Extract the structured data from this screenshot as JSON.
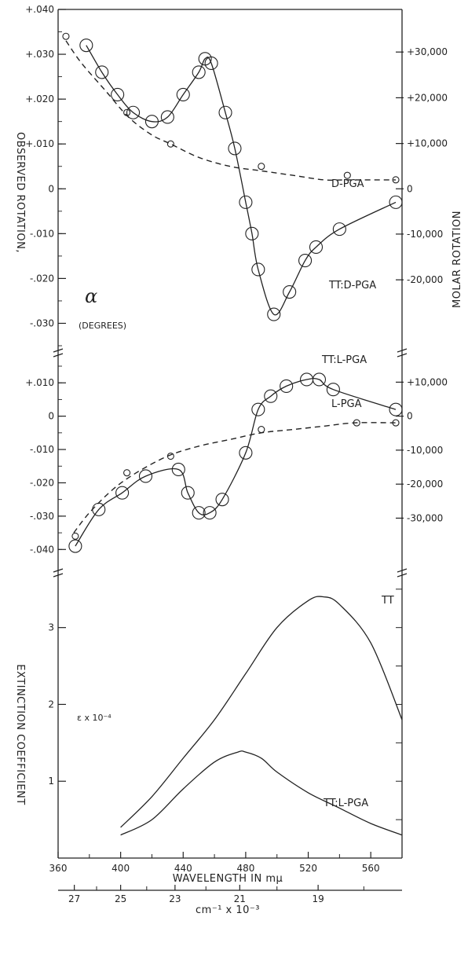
{
  "left_axis_label": "OBSERVED ROTATION,",
  "right_axis_label": "MOLAR ROTATION",
  "alpha_symbol": "α",
  "alpha_unit": "(DEGREES)",
  "ext_label": "EXTINCTION COEFFICIENT",
  "eps_label": "ε x 10⁻⁴",
  "xlabel": "WAVELENGTH IN mμ",
  "x2label": "cm⁻¹ x 10⁻³",
  "chart_data": [
    {
      "type": "line",
      "panel": "upper-rotation",
      "xlim": [
        360,
        580
      ],
      "ylim": [
        -0.035,
        0.04
      ],
      "left_ticks": [
        "+.040",
        "+.030",
        "+.020",
        "+.010",
        "0",
        "-.010",
        "-.020",
        "-.030"
      ],
      "right_ticks": [
        "+30,000",
        "+20,000",
        "+10,000",
        "0",
        "-10,000",
        "-20,000"
      ],
      "series": [
        {
          "name": "D-PGA",
          "style": "dashed",
          "x": [
            365,
            375,
            390,
            405,
            420,
            432,
            450,
            470,
            490,
            510,
            530,
            545,
            560,
            576
          ],
          "y": [
            0.033,
            0.028,
            0.022,
            0.016,
            0.012,
            0.01,
            0.007,
            0.005,
            0.004,
            0.003,
            0.002,
            0.002,
            0.002,
            0.002
          ]
        },
        {
          "name": "D-PGA points",
          "style": "small-circles",
          "x": [
            365,
            404,
            432,
            490,
            545,
            576
          ],
          "y": [
            0.034,
            0.017,
            0.01,
            0.005,
            0.003,
            0.002
          ]
        },
        {
          "name": "TT:D-PGA",
          "style": "solid-circles",
          "x": [
            378,
            388,
            398,
            408,
            420,
            430,
            440,
            450,
            454,
            458,
            467,
            473,
            480,
            484,
            488,
            498,
            508,
            518,
            525,
            540,
            576
          ],
          "y": [
            0.032,
            0.026,
            0.021,
            0.017,
            0.015,
            0.016,
            0.021,
            0.026,
            0.029,
            0.028,
            0.017,
            0.009,
            -0.003,
            -0.01,
            -0.018,
            -0.028,
            -0.023,
            -0.016,
            -0.013,
            -0.009,
            -0.003
          ]
        }
      ]
    },
    {
      "type": "line",
      "panel": "middle-rotation",
      "xlim": [
        360,
        580
      ],
      "ylim": [
        -0.043,
        0.015
      ],
      "left_ticks": [
        "+.010",
        "0",
        "-.010",
        "-.020",
        "-.030",
        "-.040"
      ],
      "right_ticks": [
        "+10,000",
        "0",
        "-10,000",
        "-20,000",
        "-30,000"
      ],
      "series": [
        {
          "name": "L-PGA",
          "style": "dashed",
          "x": [
            370,
            380,
            395,
            410,
            430,
            450,
            470,
            490,
            510,
            530,
            550,
            576
          ],
          "y": [
            -0.035,
            -0.029,
            -0.022,
            -0.017,
            -0.012,
            -0.009,
            -0.007,
            -0.005,
            -0.004,
            -0.003,
            -0.002,
            -0.002
          ]
        },
        {
          "name": "L-PGA points",
          "style": "small-circles",
          "x": [
            371,
            404,
            432,
            490,
            551,
            576
          ],
          "y": [
            -0.036,
            -0.017,
            -0.012,
            -0.004,
            -0.002,
            -0.002
          ]
        },
        {
          "name": "TT:L-PGA",
          "style": "solid-circles",
          "x": [
            371,
            386,
            401,
            416,
            437,
            443,
            450,
            457,
            465,
            480,
            488,
            496,
            506,
            519,
            527,
            536,
            576
          ],
          "y": [
            -0.039,
            -0.028,
            -0.023,
            -0.018,
            -0.016,
            -0.023,
            -0.029,
            -0.029,
            -0.025,
            -0.011,
            0.002,
            0.006,
            0.009,
            0.011,
            0.011,
            0.008,
            0.002
          ]
        }
      ]
    },
    {
      "type": "line",
      "panel": "extinction",
      "xlim": [
        360,
        580
      ],
      "ylim": [
        0,
        3.6
      ],
      "left_ticks": [
        "3",
        "2",
        "1"
      ],
      "x_ticks": [
        "360",
        "400",
        "440",
        "480",
        "520",
        "560"
      ],
      "x2_ticks": [
        "27",
        "25",
        "23",
        "21",
        "19"
      ],
      "series": [
        {
          "name": "TT",
          "x": [
            400,
            420,
            440,
            460,
            480,
            500,
            520,
            530,
            540,
            560,
            580
          ],
          "y": [
            0.4,
            0.8,
            1.3,
            1.8,
            2.4,
            3.0,
            3.35,
            3.4,
            3.3,
            2.8,
            1.8
          ]
        },
        {
          "name": "TT:L-PGA",
          "x": [
            400,
            420,
            440,
            460,
            475,
            480,
            490,
            500,
            520,
            540,
            560,
            580
          ],
          "y": [
            0.3,
            0.5,
            0.9,
            1.25,
            1.38,
            1.38,
            1.3,
            1.12,
            0.85,
            0.65,
            0.45,
            0.3
          ]
        }
      ]
    }
  ]
}
